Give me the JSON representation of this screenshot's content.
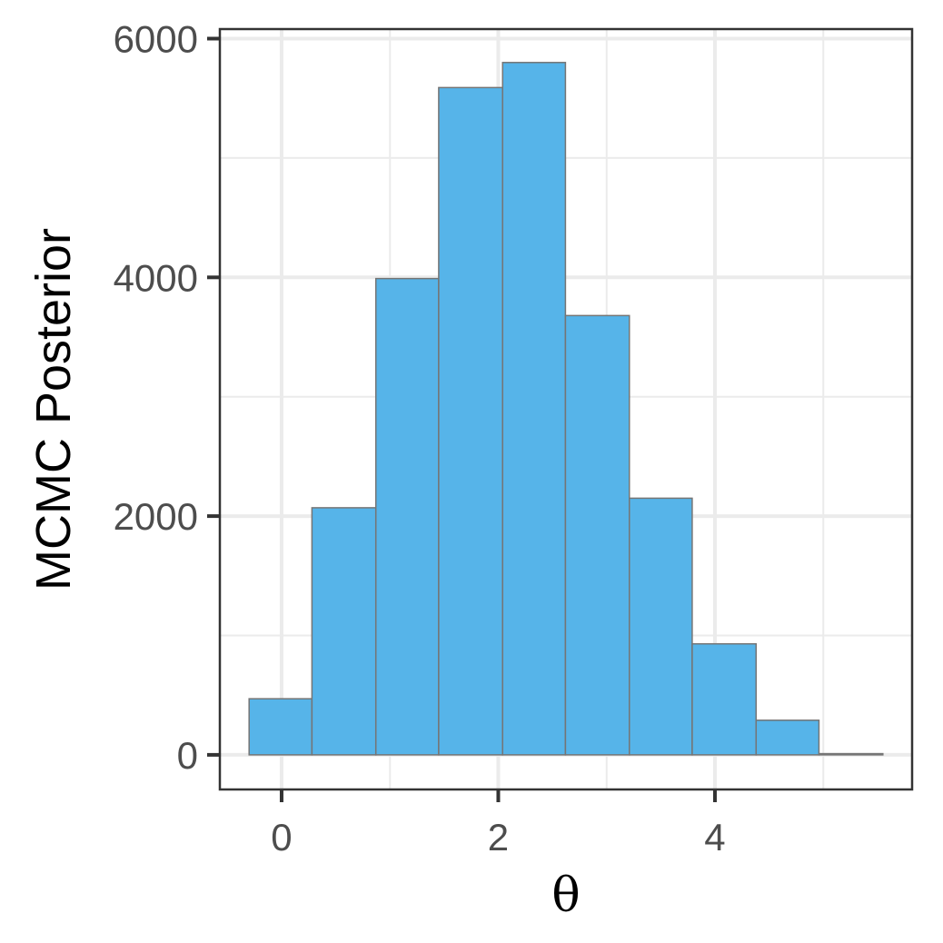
{
  "chart_data": {
    "type": "bar",
    "subtype": "histogram",
    "title": "",
    "xlabel": "θ",
    "ylabel": "MCMC Posterior",
    "xlim": [
      -0.57,
      5.82
    ],
    "ylim": [
      -290,
      6080
    ],
    "x_major_ticks": [
      0,
      2,
      4
    ],
    "x_minor_ticks": [
      1,
      3,
      5
    ],
    "y_major_ticks": [
      0,
      2000,
      4000,
      6000
    ],
    "y_minor_ticks": [
      1000,
      3000,
      5000
    ],
    "x_tick_labels": [
      "0",
      "2",
      "4"
    ],
    "y_tick_labels": [
      "0",
      "2000",
      "4000",
      "6000"
    ],
    "bins": [
      {
        "x0": -0.3,
        "x1": 0.28,
        "count": 470
      },
      {
        "x0": 0.28,
        "x1": 0.87,
        "count": 2070
      },
      {
        "x0": 0.87,
        "x1": 1.45,
        "count": 3990
      },
      {
        "x0": 1.45,
        "x1": 2.04,
        "count": 5590
      },
      {
        "x0": 2.04,
        "x1": 2.62,
        "count": 5800
      },
      {
        "x0": 2.62,
        "x1": 3.21,
        "count": 3680
      },
      {
        "x0": 3.21,
        "x1": 3.79,
        "count": 2150
      },
      {
        "x0": 3.79,
        "x1": 4.38,
        "count": 930
      },
      {
        "x0": 4.38,
        "x1": 4.96,
        "count": 290
      },
      {
        "x0": 4.96,
        "x1": 5.55,
        "count": 10
      }
    ],
    "grid": true,
    "legend": "none",
    "colors": {
      "bar_fill": "#56B4E9",
      "bar_stroke": "#757575",
      "grid": "#ebebeb",
      "panel_border": "#333333",
      "tick_text": "#4d4d4d"
    }
  }
}
